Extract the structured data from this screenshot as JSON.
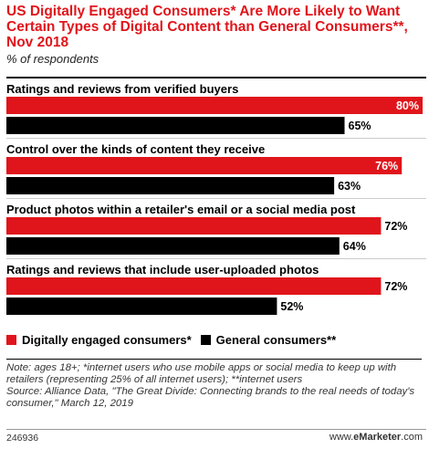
{
  "header": {
    "title": "US Digitally Engaged Consumers* Are More Likely to Want Certain Types of Digital Content than General Consumers**, Nov 2018",
    "subtitle": "% of respondents"
  },
  "colors": {
    "digital": "#e0151b",
    "general": "#000000",
    "title": "#e0151b"
  },
  "chart_data": {
    "type": "bar",
    "orientation": "horizontal",
    "categories": [
      "Ratings and reviews from verified buyers",
      "Control over the kinds of content they receive",
      "Product photos within a retailer's email or a social media post",
      "Ratings and reviews that include user-uploaded photos"
    ],
    "series": [
      {
        "name": "Digitally engaged consumers*",
        "values": [
          80,
          76,
          72,
          72
        ],
        "labels": [
          "80%",
          "76%",
          "72%",
          "72%"
        ]
      },
      {
        "name": "General consumers**",
        "values": [
          65,
          63,
          64,
          52
        ],
        "labels": [
          "65%",
          "63%",
          "64%",
          "52%"
        ]
      }
    ],
    "unit": "%",
    "xlim": [
      0,
      80
    ],
    "legend": "bottom-left",
    "grid": false
  },
  "notes": {
    "note": "Note: ages 18+; *internet users who use mobile apps or social media to keep up with retailers (representing 25% of all internet users); **internet users",
    "source": "Source: Alliance Data, \"The Great Divide: Connecting brands to the real needs of today's consumer,\" March 12, 2019"
  },
  "footer": {
    "id": "246936",
    "brand_prefix": "www.",
    "brand_name": "eMarketer",
    "brand_suffix": ".com"
  }
}
